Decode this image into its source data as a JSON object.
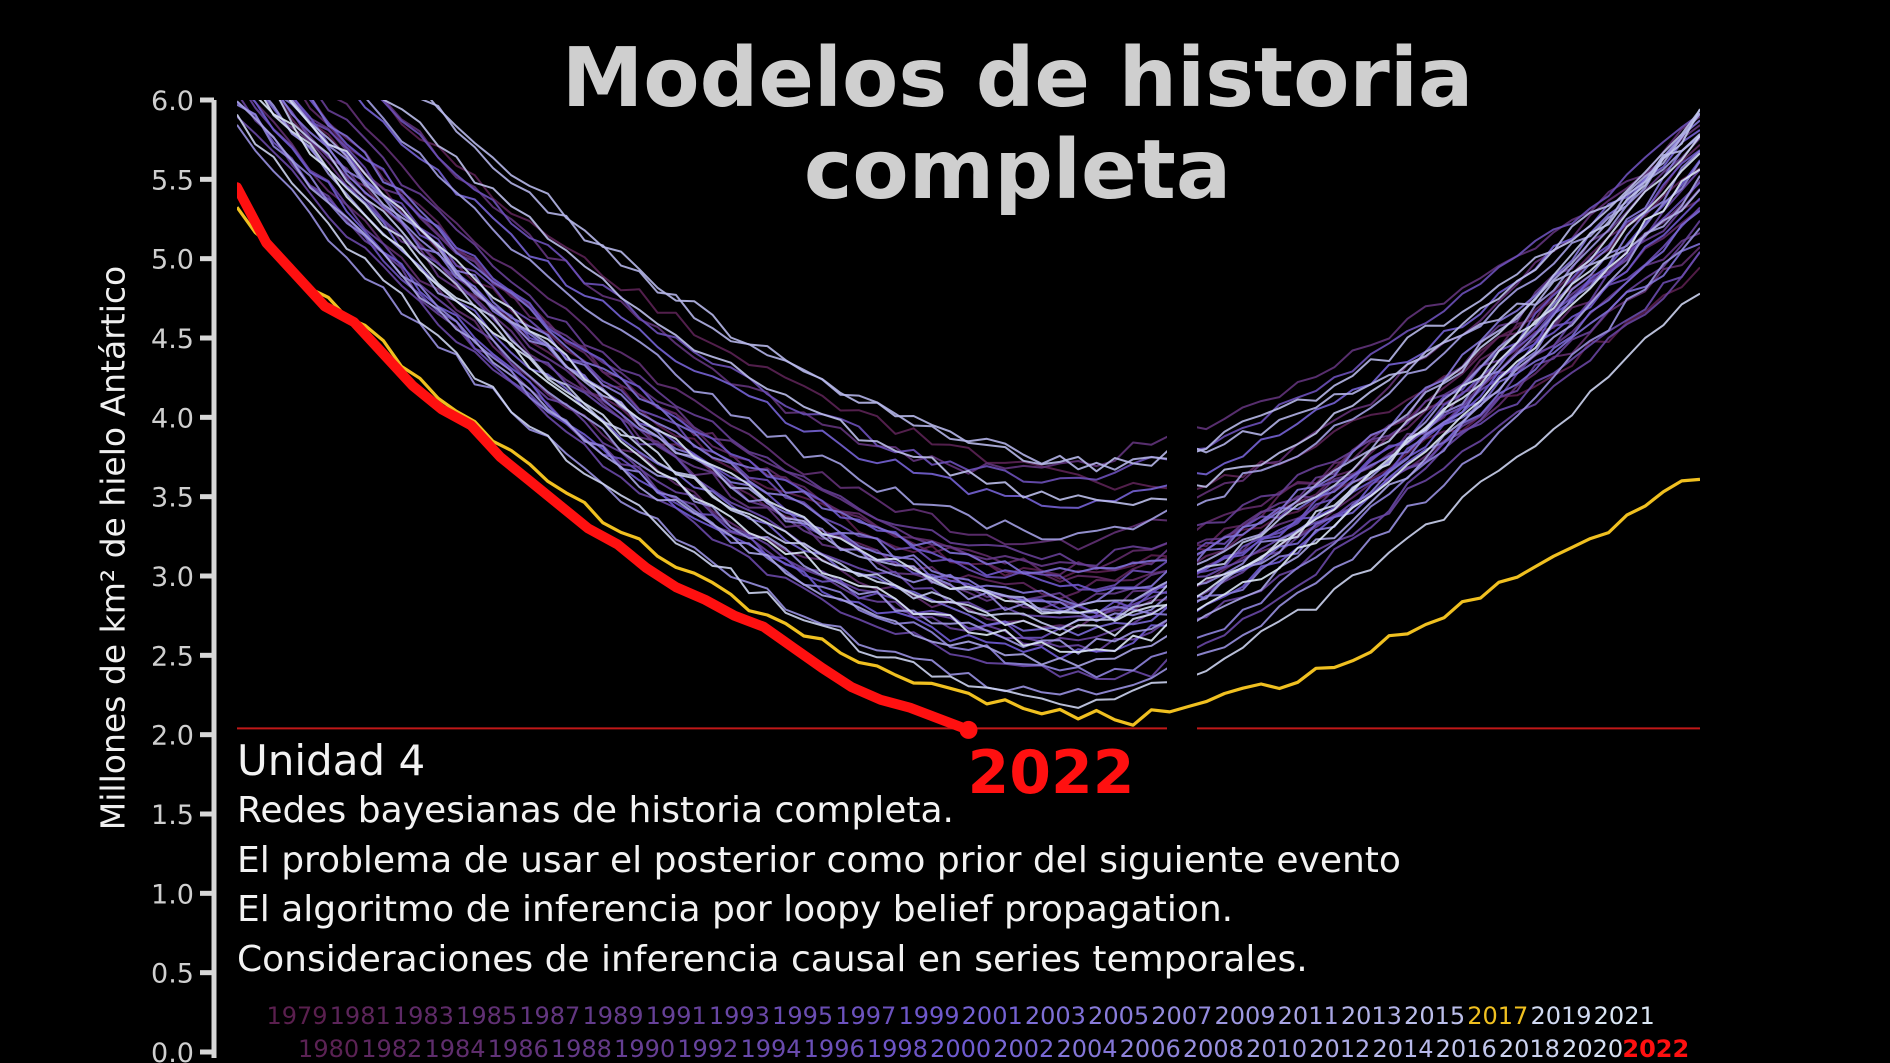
{
  "title": [
    "Modelos de historia",
    "completa"
  ],
  "lecture": {
    "unit": "Unidad 4",
    "lines": [
      "Redes bayesianas de historia completa.",
      "El problema de usar el posterior como prior del siguiente evento",
      "El algoritmo de inferencia por loopy belief propagation.",
      "Consideraciones de inferencia causal en series temporales."
    ]
  },
  "chart_data": {
    "type": "line",
    "title": "Modelos de historia completa",
    "xlabel": "",
    "ylabel": "Millones de km² de hielo Antártico",
    "ylim": [
      0,
      6
    ],
    "yticks": [
      "0.0",
      "0.5",
      "1.0",
      "1.5",
      "2.0",
      "2.5",
      "3.0",
      "3.5",
      "4.0",
      "4.5",
      "5.0",
      "5.5",
      "6.0"
    ],
    "x_range": [
      0,
      100
    ],
    "grid": false,
    "legend_placement": "bottom",
    "reference_line": {
      "y": 2.04,
      "color": "#c01818"
    },
    "highlight_label": "2022",
    "background_years": {
      "first": 1979,
      "last": 2021,
      "color_first": "#5a1f4e",
      "color_mid": "#6f5bd1",
      "color_last": "#dbe7f5",
      "note_values": "minimum extent and shape per year, values in millions km²"
    },
    "series": [
      {
        "name": "1979",
        "x_min": 57,
        "y_min": 3.0,
        "y_start": 6.4,
        "y_end": 4.9
      },
      {
        "name": "1980",
        "x_min": 64,
        "y_min": 3.55,
        "y_start": 6.8,
        "y_end": 5.4
      },
      {
        "name": "1981",
        "x_min": 56,
        "y_min": 2.9,
        "y_start": 6.3,
        "y_end": 5.6
      },
      {
        "name": "1982",
        "x_min": 60,
        "y_min": 2.95,
        "y_start": 6.5,
        "y_end": 5.7
      },
      {
        "name": "1983",
        "x_min": 57,
        "y_min": 3.05,
        "y_start": 6.5,
        "y_end": 5.3
      },
      {
        "name": "1984",
        "x_min": 56,
        "y_min": 2.7,
        "y_start": 6.1,
        "y_end": 5.1
      },
      {
        "name": "1985",
        "x_min": 57,
        "y_min": 3.2,
        "y_start": 6.7,
        "y_end": 5.9
      },
      {
        "name": "1986",
        "x_min": 54,
        "y_min": 3.65,
        "y_start": 7.0,
        "y_end": 5.8
      },
      {
        "name": "1987",
        "x_min": 58,
        "y_min": 2.8,
        "y_start": 6.2,
        "y_end": 5.5
      },
      {
        "name": "1988",
        "x_min": 59,
        "y_min": 3.05,
        "y_start": 6.4,
        "y_end": 5.2
      },
      {
        "name": "1989",
        "x_min": 57,
        "y_min": 2.85,
        "y_start": 6.3,
        "y_end": 5.8
      },
      {
        "name": "1990",
        "x_min": 58,
        "y_min": 3.1,
        "y_start": 6.6,
        "y_end": 5.4
      },
      {
        "name": "1991",
        "x_min": 56,
        "y_min": 2.6,
        "y_start": 6.0,
        "y_end": 5.2
      },
      {
        "name": "1992",
        "x_min": 58,
        "y_min": 2.55,
        "y_start": 6.1,
        "y_end": 5.0
      },
      {
        "name": "1993",
        "x_min": 60,
        "y_min": 2.35,
        "y_start": 5.9,
        "y_end": 5.6
      },
      {
        "name": "1994",
        "x_min": 57,
        "y_min": 2.75,
        "y_start": 6.3,
        "y_end": 5.0
      },
      {
        "name": "1995",
        "x_min": 58,
        "y_min": 2.95,
        "y_start": 6.4,
        "y_end": 5.3
      },
      {
        "name": "1996",
        "x_min": 57,
        "y_min": 3.6,
        "y_start": 6.9,
        "y_end": 5.9
      },
      {
        "name": "1997",
        "x_min": 55,
        "y_min": 2.65,
        "y_start": 6.0,
        "y_end": 5.5
      },
      {
        "name": "1998",
        "x_min": 59,
        "y_min": 2.8,
        "y_start": 6.4,
        "y_end": 5.7
      },
      {
        "name": "1999",
        "x_min": 61,
        "y_min": 2.9,
        "y_start": 6.5,
        "y_end": 5.4
      },
      {
        "name": "2000",
        "x_min": 57,
        "y_min": 2.5,
        "y_start": 6.1,
        "y_end": 5.6
      },
      {
        "name": "2001",
        "x_min": 58,
        "y_min": 3.45,
        "y_start": 6.8,
        "y_end": 5.8
      },
      {
        "name": "2002",
        "x_min": 58,
        "y_min": 2.65,
        "y_start": 6.2,
        "y_end": 5.3
      },
      {
        "name": "2003",
        "x_min": 58,
        "y_min": 3.0,
        "y_start": 6.5,
        "y_end": 5.1
      },
      {
        "name": "2004",
        "x_min": 58,
        "y_min": 2.85,
        "y_start": 6.3,
        "y_end": 5.9
      },
      {
        "name": "2005",
        "x_min": 63,
        "y_min": 2.75,
        "y_start": 6.3,
        "y_end": 5.8
      },
      {
        "name": "2006",
        "x_min": 60,
        "y_min": 2.4,
        "y_start": 6.0,
        "y_end": 5.7
      },
      {
        "name": "2007",
        "x_min": 59,
        "y_min": 2.75,
        "y_start": 6.4,
        "y_end": 5.6
      },
      {
        "name": "2008",
        "x_min": 58,
        "y_min": 2.25,
        "y_start": 5.8,
        "y_end": 5.2
      },
      {
        "name": "2009",
        "x_min": 58,
        "y_min": 2.55,
        "y_start": 6.2,
        "y_end": 5.9
      },
      {
        "name": "2010",
        "x_min": 58,
        "y_min": 3.25,
        "y_start": 6.9,
        "y_end": 5.8
      },
      {
        "name": "2011",
        "x_min": 58,
        "y_min": 2.45,
        "y_start": 6.0,
        "y_end": 5.5
      },
      {
        "name": "2012",
        "x_min": 58,
        "y_min": 2.8,
        "y_start": 6.4,
        "y_end": 5.9
      },
      {
        "name": "2013",
        "x_min": 60,
        "y_min": 3.7,
        "y_start": 7.2,
        "y_end": 5.4
      },
      {
        "name": "2014",
        "x_min": 60,
        "y_min": 3.7,
        "y_start": 7.3,
        "y_end": 5.8
      },
      {
        "name": "2015",
        "x_min": 61,
        "y_min": 3.45,
        "y_start": 7.0,
        "y_end": 5.9
      },
      {
        "name": "2016",
        "x_min": 57,
        "y_min": 2.7,
        "y_start": 6.3,
        "y_end": 5.9
      },
      {
        "name": "2017",
        "x_min": 61,
        "y_min": 2.1,
        "y_start": 5.3,
        "y_end": 3.65,
        "color": "#f0c020"
      },
      {
        "name": "2018",
        "x_min": 58,
        "y_min": 2.2,
        "y_start": 5.9,
        "y_end": 4.8
      },
      {
        "name": "2019",
        "x_min": 59,
        "y_min": 2.65,
        "y_start": 6.2,
        "y_end": 5.8
      },
      {
        "name": "2020",
        "x_min": 60,
        "y_min": 2.75,
        "y_start": 6.4,
        "y_end": 5.7
      },
      {
        "name": "2021",
        "x_min": 59,
        "y_min": 2.55,
        "y_start": 6.2,
        "y_end": 5.6
      },
      {
        "name": "2022",
        "color": "#ff1010",
        "x": [
          0,
          2,
          4,
          6,
          8,
          10,
          12,
          14,
          16,
          18,
          20,
          22,
          24,
          26,
          28,
          30,
          32,
          34,
          36,
          38,
          40,
          42,
          44,
          46,
          48,
          50
        ],
        "y": [
          5.45,
          5.1,
          4.9,
          4.7,
          4.6,
          4.4,
          4.2,
          4.05,
          3.95,
          3.75,
          3.6,
          3.45,
          3.3,
          3.2,
          3.05,
          2.93,
          2.85,
          2.75,
          2.68,
          2.55,
          2.42,
          2.3,
          2.22,
          2.17,
          2.1,
          2.03
        ]
      }
    ]
  }
}
